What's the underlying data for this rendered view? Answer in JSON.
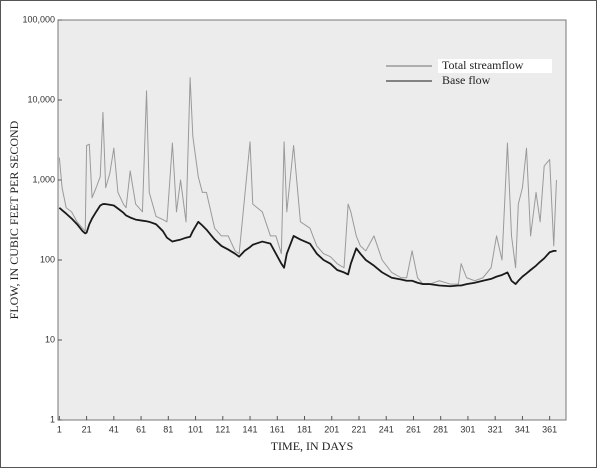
{
  "chart_data": {
    "type": "line",
    "xlabel": "TIME, IN DAYS",
    "ylabel": "FLOW, IN CUBIC FEET PER SECOND",
    "x": [
      1,
      3,
      6,
      10,
      14,
      18,
      20,
      21,
      23,
      25,
      28,
      31,
      33,
      35,
      38,
      41,
      44,
      48,
      50,
      53,
      57,
      62,
      65,
      67,
      72,
      77,
      80,
      84,
      87,
      90,
      94,
      97,
      99,
      103,
      106,
      109,
      115,
      120,
      125,
      130,
      133,
      137,
      141,
      143,
      150,
      156,
      160,
      164,
      166,
      168,
      173,
      178,
      185,
      190,
      195,
      200,
      205,
      210,
      213,
      215,
      219,
      222,
      226,
      232,
      238,
      245,
      252,
      256,
      260,
      264,
      268,
      273,
      280,
      288,
      294,
      296,
      300,
      306,
      312,
      318,
      322,
      326,
      330,
      333,
      336,
      338,
      341,
      344,
      347,
      351,
      354,
      357,
      361,
      364,
      366
    ],
    "series": [
      {
        "name": "Total streamflow",
        "color": "#9a9a9a",
        "values": [
          1900,
          800,
          450,
          400,
          300,
          250,
          230,
          2700,
          2800,
          600,
          800,
          1100,
          7000,
          800,
          1200,
          2500,
          700,
          500,
          450,
          1300,
          500,
          400,
          13000,
          700,
          350,
          320,
          300,
          2900,
          400,
          1000,
          300,
          19000,
          3500,
          1100,
          700,
          700,
          250,
          200,
          200,
          130,
          120,
          600,
          3000,
          500,
          400,
          200,
          200,
          120,
          3000,
          400,
          2700,
          300,
          250,
          150,
          120,
          110,
          90,
          80,
          500,
          400,
          200,
          150,
          130,
          200,
          100,
          70,
          60,
          60,
          130,
          60,
          50,
          50,
          55,
          50,
          50,
          90,
          60,
          55,
          60,
          80,
          200,
          100,
          2900,
          200,
          80,
          500,
          800,
          2500,
          200,
          700,
          300,
          1500,
          1800,
          150,
          1000
        ]
      },
      {
        "name": "Base flow",
        "color": "#1a1a1a",
        "values": [
          450,
          420,
          380,
          330,
          280,
          230,
          215,
          220,
          280,
          330,
          400,
          480,
          500,
          500,
          490,
          480,
          440,
          390,
          360,
          340,
          320,
          310,
          305,
          300,
          280,
          230,
          190,
          170,
          175,
          180,
          190,
          195,
          230,
          300,
          270,
          240,
          180,
          150,
          135,
          120,
          110,
          130,
          145,
          155,
          170,
          160,
          120,
          90,
          80,
          120,
          200,
          180,
          160,
          120,
          100,
          90,
          75,
          70,
          66,
          90,
          140,
          120,
          100,
          85,
          70,
          60,
          57,
          55,
          55,
          52,
          50,
          50,
          48,
          47,
          48,
          48,
          50,
          52,
          55,
          58,
          62,
          65,
          70,
          55,
          50,
          55,
          62,
          68,
          75,
          85,
          95,
          105,
          125,
          130,
          130
        ]
      }
    ],
    "xlim": [
      0,
      373
    ],
    "xticks": [
      1,
      21,
      41,
      61,
      81,
      101,
      121,
      141,
      161,
      181,
      201,
      221,
      241,
      261,
      281,
      301,
      321,
      341,
      361
    ],
    "ylim": [
      1,
      100000
    ],
    "ylog": true,
    "yticks": [
      1,
      10,
      100,
      {
        "value": 1000,
        "label": "1,000"
      },
      {
        "value": 10000,
        "label": "10,000"
      },
      {
        "value": 100000,
        "label": "100,000"
      }
    ],
    "legend": "upper right"
  }
}
